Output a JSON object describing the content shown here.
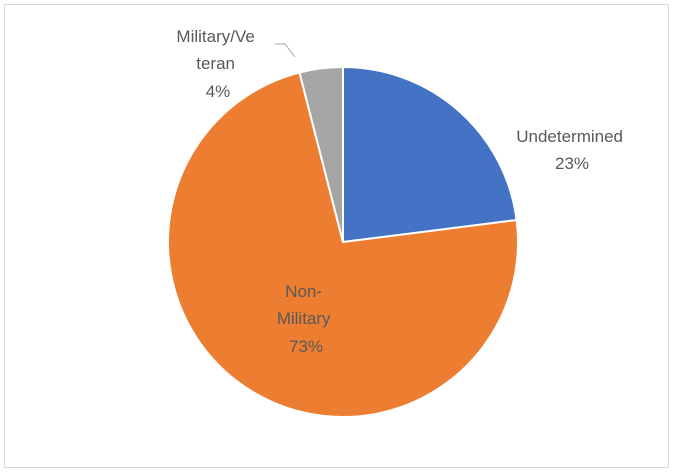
{
  "chart_data": {
    "type": "pie",
    "title": "",
    "start_angle_deg": 0,
    "direction": "clockwise",
    "slices": [
      {
        "name": "Undetermined",
        "value": 23,
        "pct_label": "23%",
        "label_lines": [
          "Undetermined",
          "23%"
        ],
        "color": "#4472c4"
      },
      {
        "name": "Non-Military",
        "value": 73,
        "pct_label": "73%",
        "label_lines": [
          "Non-",
          "Military",
          "73%"
        ],
        "color": "#ed7d31"
      },
      {
        "name": "Military/Veteran",
        "value": 4,
        "pct_label": "4%",
        "label_lines": [
          "Military/Ve",
          "teran",
          "4%"
        ],
        "color": "#a5a5a5"
      }
    ],
    "slice_border_color": "#ffffff",
    "label_color": "#595959",
    "leader_line_color": "#a6a6a6",
    "legend": "none"
  }
}
